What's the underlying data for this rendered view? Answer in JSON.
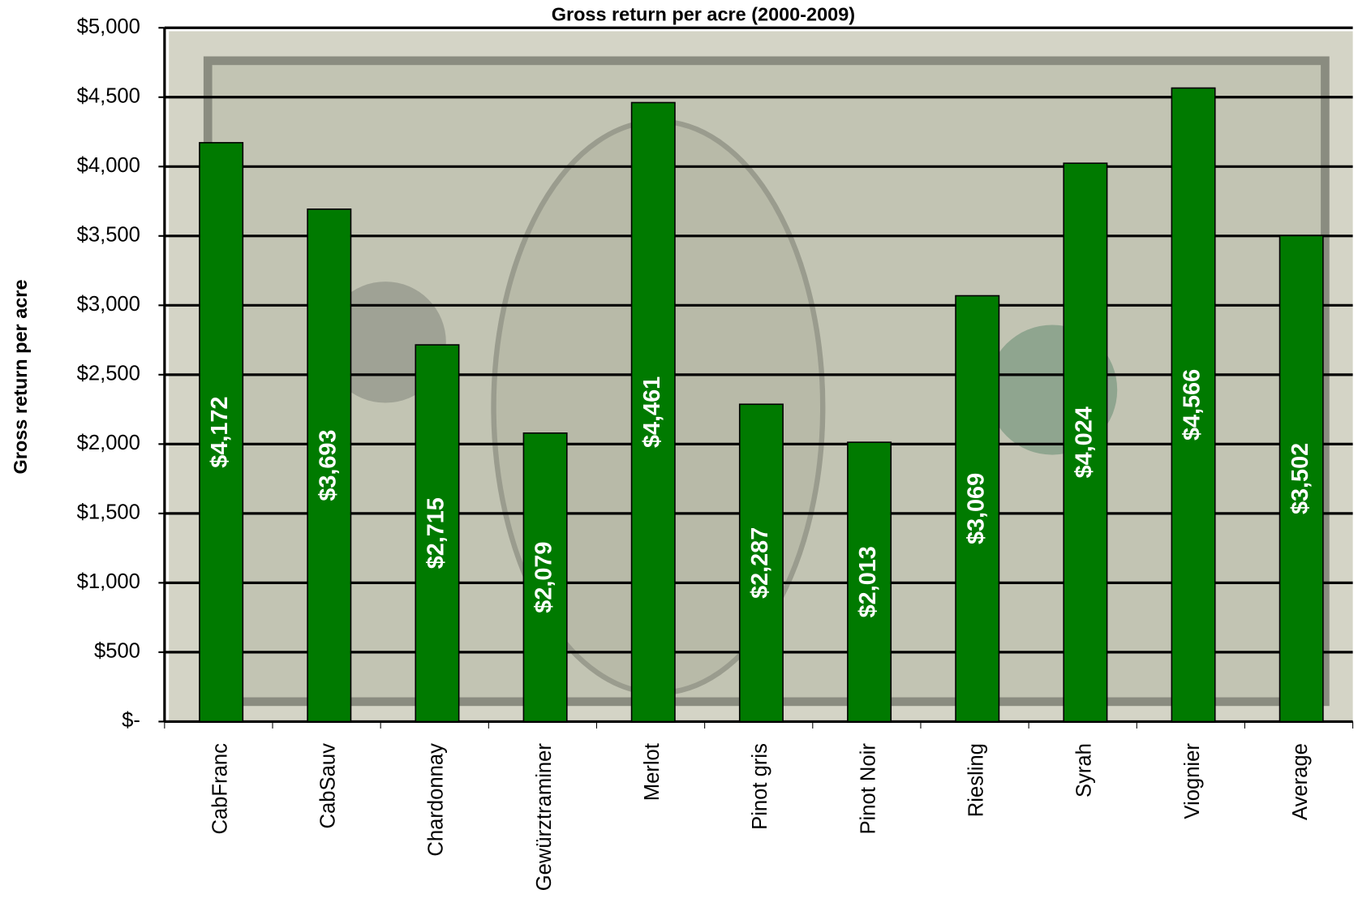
{
  "chart_data": {
    "type": "bar",
    "title": "Gross return per acre (2000-2009)",
    "y_label": "Gross return per acre",
    "categories": [
      "CabFranc",
      "CabSauv",
      "Chardonnay",
      "Gewürztraminer",
      "Merlot",
      "Pinot gris",
      "Pinot Noir",
      "Riesling",
      "Syrah",
      "Viognier",
      "Average"
    ],
    "values": [
      4172,
      3693,
      2715,
      2079,
      4461,
      2287,
      2013,
      3069,
      4024,
      4566,
      3502
    ],
    "value_labels": [
      "$4,172",
      "$3,693",
      "$2,715",
      "$2,079",
      "$4,461",
      "$2,287",
      "$2,013",
      "$3,069",
      "$4,024",
      "$4,566",
      "$3,502"
    ],
    "color": "#007a00",
    "ylim": [
      0,
      5000
    ],
    "yticks": [
      {
        "value": 0,
        "label": "$-"
      },
      {
        "value": 500,
        "label": "$500"
      },
      {
        "value": 1000,
        "label": "$1,000"
      },
      {
        "value": 1500,
        "label": "$1,500"
      },
      {
        "value": 2000,
        "label": "$2,000"
      },
      {
        "value": 2500,
        "label": "$2,500"
      },
      {
        "value": 3000,
        "label": "$3,000"
      },
      {
        "value": 3500,
        "label": "$3,500"
      },
      {
        "value": 4000,
        "label": "$4,000"
      },
      {
        "value": 4500,
        "label": "$4,500"
      },
      {
        "value": 5000,
        "label": "$5,000"
      }
    ],
    "grid": true
  }
}
